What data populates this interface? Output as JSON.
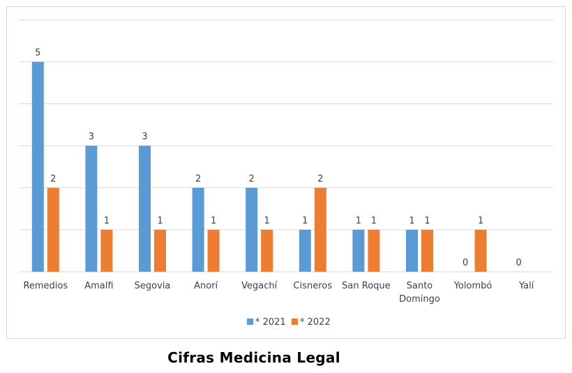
{
  "caption": "Cifras Medicina Legal",
  "chart_data": {
    "type": "bar",
    "title": "",
    "xlabel": "",
    "ylabel": "",
    "categories": [
      "Remedios",
      "Amalfi",
      "Segovia",
      "Anorí",
      "Vegachí",
      "Cisneros",
      "San Roque",
      "Santo Domingo",
      "Yolombó",
      "Yalí"
    ],
    "series": [
      {
        "name": "* 2021",
        "color": "#5b9bd5",
        "values": [
          5,
          3,
          3,
          2,
          2,
          1,
          1,
          1,
          0,
          0
        ]
      },
      {
        "name": "* 2022",
        "color": "#ed7d31",
        "values": [
          2,
          1,
          1,
          1,
          1,
          2,
          1,
          1,
          1,
          null
        ]
      }
    ],
    "ylim": [
      0,
      6
    ],
    "grid": true,
    "legend_position": "bottom",
    "data_labels": true
  }
}
